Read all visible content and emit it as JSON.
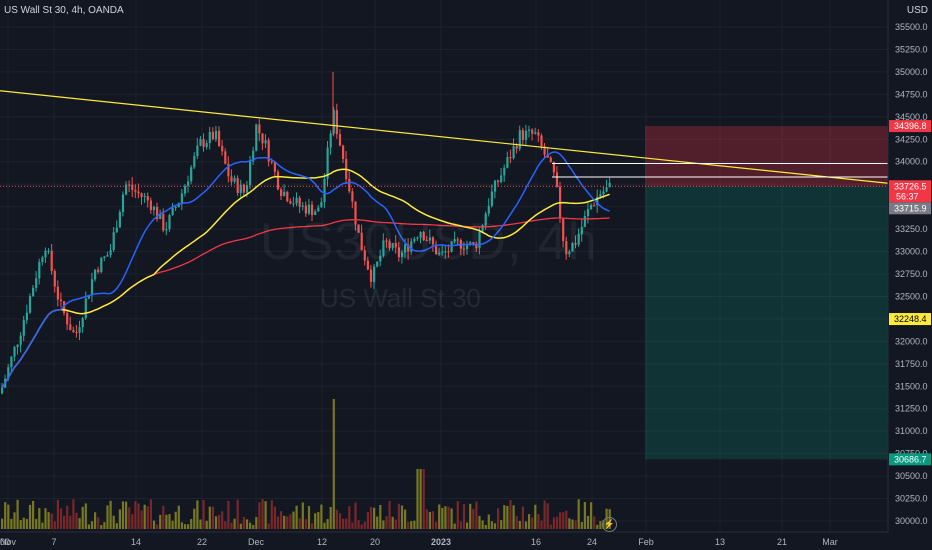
{
  "header": {
    "symbol": "US Wall St 30",
    "interval": "4h",
    "broker": "OANDA",
    "title_sep": ", "
  },
  "watermark": {
    "ticker": "US30USD, 4h",
    "name": "US Wall St 30"
  },
  "currency": "USD",
  "icons": {
    "bolt": "lightning-icon"
  },
  "colors": {
    "background": "#131722",
    "up": "#26a69a",
    "down": "#ef5350",
    "ma_fast": "#2962ff",
    "ma_mid": "#ffeb3b",
    "ma_slow": "#f23645",
    "trendline": "#ffeb3b",
    "stop_zone": "#f23645",
    "target_zone": "#089981"
  },
  "chart_data": {
    "type": "candlestick",
    "y_ticks": [
      "35500.0",
      "35250.0",
      "35000.0",
      "34750.0",
      "34500.0",
      "34250.0",
      "34000.0",
      "33750.0",
      "33500.0",
      "33250.0",
      "33000.0",
      "32750.0",
      "32500.0",
      "32250.0",
      "32000.0",
      "31750.0",
      "31500.0",
      "31250.0",
      "31000.0",
      "30750.0",
      "30500.0",
      "30250.0",
      "30000.0"
    ],
    "ylim": [
      29950,
      35700
    ],
    "x_ticks": [
      "Nov",
      "7",
      "14",
      "22",
      "Dec",
      "12",
      "20",
      "2023",
      "16",
      "24",
      "Feb",
      "13",
      "21",
      "Mar"
    ],
    "price_labels": {
      "stop": "34396.8",
      "entry": "33726.5",
      "countdown": "56:37",
      "last": "33715.9",
      "mid": "32248.4",
      "target": "30686.7"
    },
    "levels": {
      "stop": 34396.8,
      "entry": 33726.5,
      "last": 33715.9,
      "mid": 32248.4,
      "target": 30686.7
    },
    "trendline": {
      "from": [
        0,
        34790
      ],
      "to": [
        1,
        33760
      ]
    },
    "horizontal_lines": [
      33980,
      33830
    ]
  }
}
